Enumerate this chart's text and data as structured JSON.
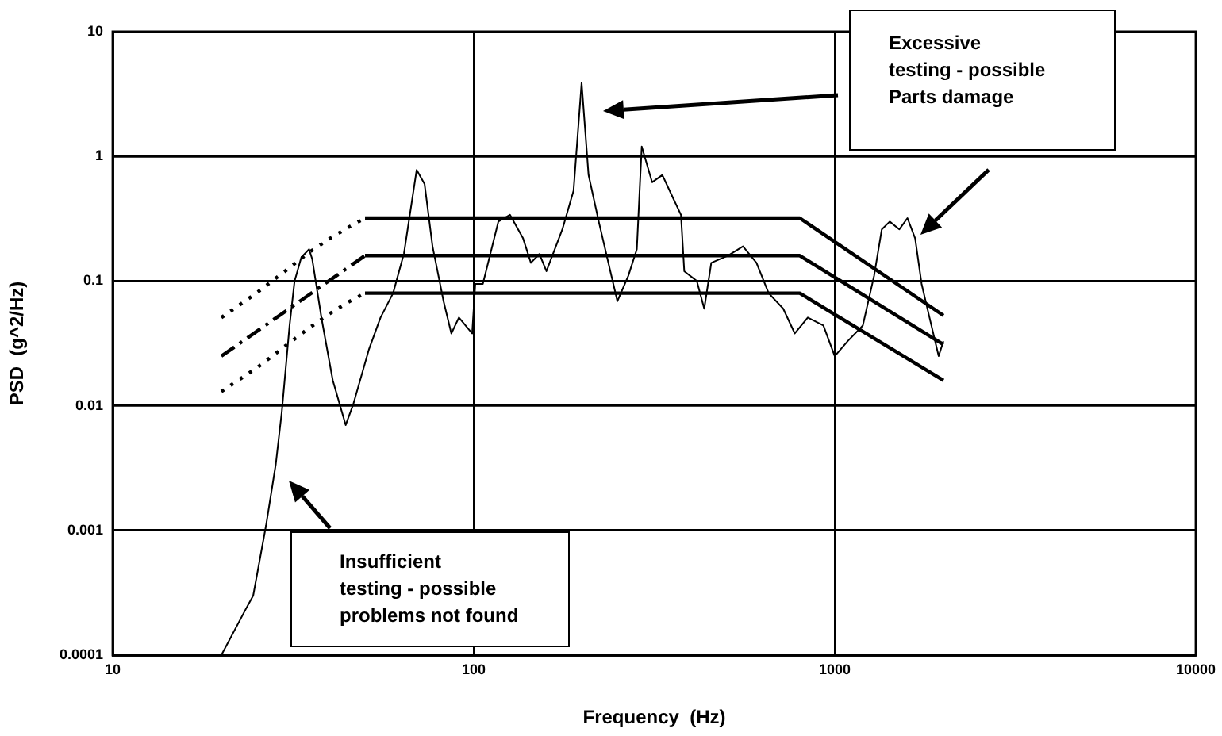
{
  "chart_data": {
    "type": "line",
    "xlabel": "Frequency  (Hz)",
    "ylabel": "PSD  (g^2/Hz)",
    "log": "xy",
    "xlim": [
      10,
      10000
    ],
    "xticks": [
      10,
      100,
      1000,
      10000
    ],
    "ylim": [
      0.0001,
      10
    ],
    "yticks": [
      0.0001,
      0.001,
      0.01,
      0.1,
      1,
      10
    ],
    "grid": true,
    "legend": false,
    "marker": "none",
    "series": [
      {
        "color": "#000000",
        "line_style": "solid",
        "x": [
          20,
          23.3,
          24.5,
          26.6,
          28.3,
          29.4,
          30.9,
          31.9,
          33.3,
          35,
          35.7,
          37.9,
          40.7,
          44.2,
          46.4,
          51.3,
          55.2,
          59.8,
          64.1,
          69.5,
          73.1,
          76.9,
          82.5,
          86.7,
          91,
          99,
          101,
          106,
          117,
          126,
          137,
          144,
          152,
          159,
          176,
          189,
          199,
          208,
          222,
          239,
          250,
          268,
          283,
          292,
          312,
          333,
          357,
          375,
          383,
          415,
          435,
          455,
          506,
          557,
          607,
          656,
          720,
          775,
          842,
          930,
          1000,
          1086,
          1196,
          1285,
          1350,
          1420,
          1510,
          1590,
          1670,
          1740,
          1830,
          1940,
          2000
        ],
        "values": [
          0.0001,
          0.00023,
          0.0003,
          0.0011,
          0.0034,
          0.0089,
          0.044,
          0.1,
          0.155,
          0.18,
          0.15,
          0.05,
          0.016,
          0.007,
          0.0103,
          0.0285,
          0.051,
          0.08,
          0.167,
          0.78,
          0.6,
          0.19,
          0.069,
          0.038,
          0.051,
          0.038,
          0.095,
          0.095,
          0.3,
          0.34,
          0.22,
          0.14,
          0.165,
          0.12,
          0.26,
          0.53,
          3.9,
          0.71,
          0.3,
          0.12,
          0.069,
          0.11,
          0.18,
          1.2,
          0.62,
          0.71,
          0.46,
          0.34,
          0.12,
          0.1,
          0.06,
          0.14,
          0.16,
          0.19,
          0.14,
          0.08,
          0.06,
          0.038,
          0.051,
          0.044,
          0.025,
          0.033,
          0.044,
          0.11,
          0.26,
          0.3,
          0.26,
          0.32,
          0.22,
          0.095,
          0.051,
          0.025,
          0.033
        ]
      },
      {
        "color": "#000000",
        "line_style": "dotted",
        "x": [
          20,
          25,
          30,
          35,
          40,
          45,
          50
        ],
        "values": [
          0.051,
          0.08,
          0.12,
          0.17,
          0.22,
          0.27,
          0.32
        ]
      },
      {
        "color": "#000000",
        "line_style": "solid",
        "x": [
          50,
          800,
          2000
        ],
        "values": [
          0.32,
          0.32,
          0.053
        ]
      },
      {
        "color": "#000000",
        "line_style": "dashed",
        "x": [
          20,
          50
        ],
        "values": [
          0.025,
          0.16
        ]
      },
      {
        "color": "#000000",
        "line_style": "solid",
        "x": [
          50,
          800,
          2000
        ],
        "values": [
          0.16,
          0.16,
          0.031
        ]
      },
      {
        "color": "#000000",
        "line_style": "dotted",
        "x": [
          20,
          25,
          30,
          35,
          40,
          45,
          50
        ],
        "values": [
          0.013,
          0.02,
          0.03,
          0.042,
          0.055,
          0.068,
          0.08
        ]
      },
      {
        "color": "#000000",
        "line_style": "solid",
        "x": [
          50,
          800,
          2000
        ],
        "values": [
          0.08,
          0.08,
          0.016
        ]
      }
    ],
    "annotations": [
      "Excessive\ntesting - possible\nParts damage",
      "Insufficient\ntesting - possible\nproblems not found"
    ]
  }
}
